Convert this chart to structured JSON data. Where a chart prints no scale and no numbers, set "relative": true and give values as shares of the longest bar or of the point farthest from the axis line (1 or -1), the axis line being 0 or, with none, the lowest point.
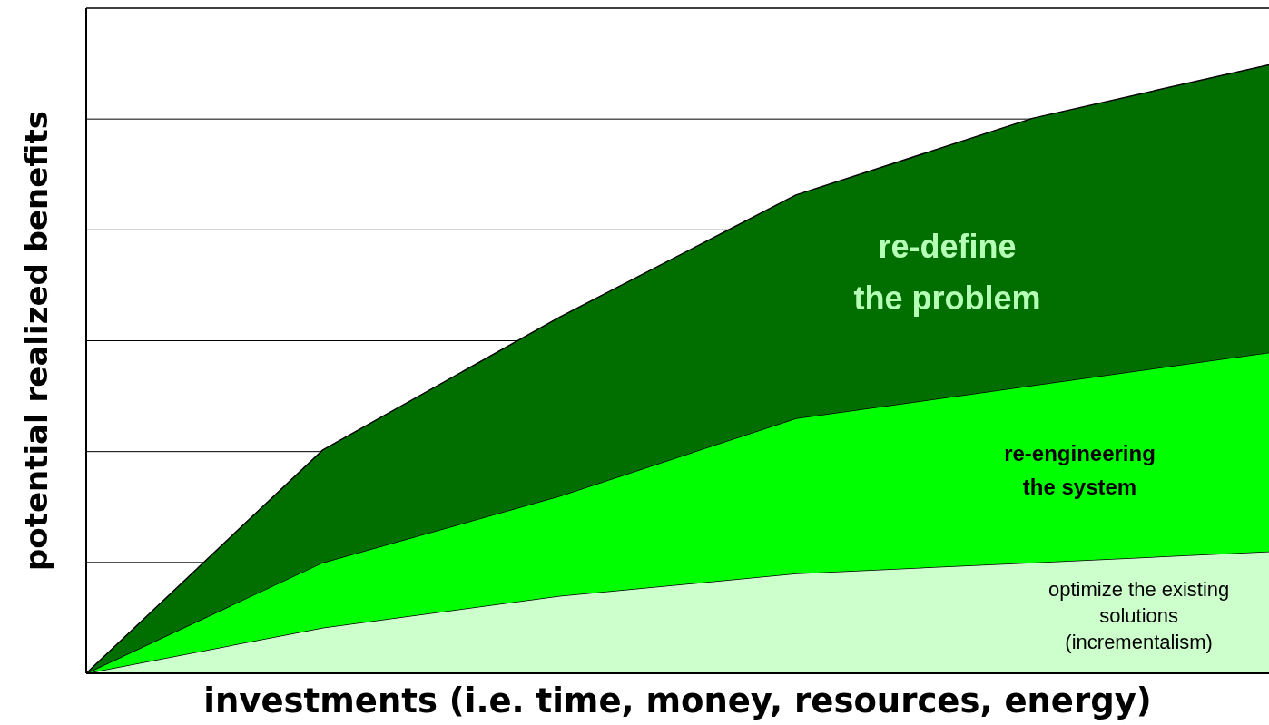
{
  "chart_data": {
    "type": "area",
    "stacked": true,
    "relative": true,
    "xlabel": "investments (i.e. time, money, resources, energy)",
    "ylabel": "potential realized benefits",
    "categories": [
      null,
      null,
      null,
      null,
      null,
      null
    ],
    "grid": "y",
    "series": [
      {
        "name": "optimize the existing\nsolutions\n(incrementalism)",
        "color": "#ccffcc",
        "values": [
          0,
          0.075,
          0.127,
          0.164,
          0.182,
          0.2
        ]
      },
      {
        "name": "re-engineering\nthe system",
        "color": "#00ff00",
        "values": [
          0,
          0.107,
          0.164,
          0.255,
          0.291,
          0.327
        ]
      },
      {
        "name": "re-define\nthe problem",
        "color": "#006f00",
        "values": [
          0,
          0.185,
          0.294,
          0.367,
          0.439,
          0.473
        ]
      }
    ]
  }
}
